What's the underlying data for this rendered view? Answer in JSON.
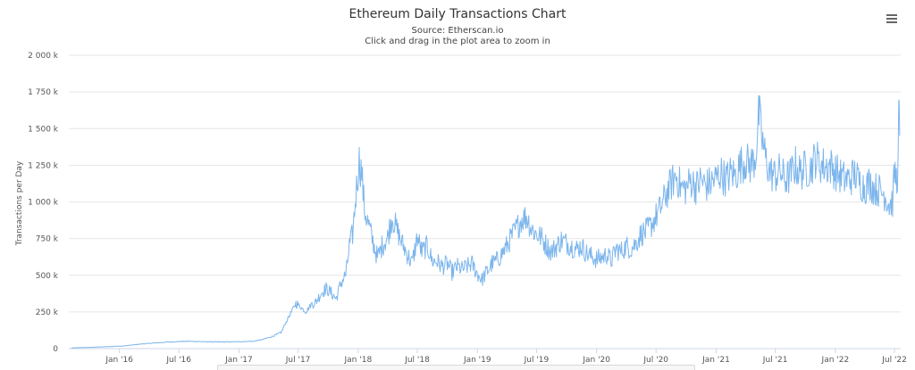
{
  "chart_data": {
    "type": "line",
    "title": "Ethereum Daily Transactions Chart",
    "subtitle": "Source: Etherscan.io",
    "instruction": "Click and drag in the plot area to zoom in",
    "ylabel": "Transactions per Day",
    "xlabel": "",
    "x_ticks": [
      "Jan '16",
      "Jul '16",
      "Jan '17",
      "Jul '17",
      "Jan '18",
      "Jul '18",
      "Jan '19",
      "Jul '19",
      "Jan '20",
      "Jul '20",
      "Jan '21",
      "Jul '21",
      "Jan '22",
      "Jul '22"
    ],
    "y_ticks": [
      "0",
      "250 k",
      "500 k",
      "750 k",
      "1 000 k",
      "1 250 k",
      "1 500 k",
      "1 750 k",
      "2 000 k"
    ],
    "ylim": [
      0,
      2000000
    ],
    "xlim": [
      "2015-07-30",
      "2022-07-20"
    ],
    "grid": true,
    "legend": "none",
    "colors": {
      "line": "#7cb5ec",
      "grid": "#e6e6e6",
      "axis": "#ccd6eb"
    },
    "series": [
      {
        "x": [
          "2015-08-07",
          "2015-10-01",
          "2015-12-01",
          "2016-01-15",
          "2016-03-01",
          "2016-04-15",
          "2016-06-01",
          "2016-07-01",
          "2016-08-01",
          "2016-09-15",
          "2016-11-01",
          "2016-12-15",
          "2017-01-15",
          "2017-02-15",
          "2017-03-15",
          "2017-04-15",
          "2017-05-10",
          "2017-05-25",
          "2017-06-10",
          "2017-06-25",
          "2017-07-10",
          "2017-07-25",
          "2017-08-10",
          "2017-08-25",
          "2017-09-10",
          "2017-09-25",
          "2017-10-10",
          "2017-10-25",
          "2017-11-10",
          "2017-11-25",
          "2017-12-05",
          "2017-12-15",
          "2017-12-25",
          "2018-01-04",
          "2018-01-12",
          "2018-01-20",
          "2018-02-01",
          "2018-02-15",
          "2018-03-01",
          "2018-03-15",
          "2018-04-01",
          "2018-04-15",
          "2018-05-01",
          "2018-05-15",
          "2018-06-01",
          "2018-06-15",
          "2018-07-01",
          "2018-07-15",
          "2018-08-01",
          "2018-08-15",
          "2018-09-01",
          "2018-09-15",
          "2018-10-01",
          "2018-10-15",
          "2018-11-01",
          "2018-11-15",
          "2018-12-01",
          "2018-12-15",
          "2019-01-01",
          "2019-01-15",
          "2019-02-01",
          "2019-02-15",
          "2019-03-01",
          "2019-03-15",
          "2019-04-01",
          "2019-04-15",
          "2019-05-01",
          "2019-05-15",
          "2019-06-01",
          "2019-06-15",
          "2019-07-01",
          "2019-07-15",
          "2019-08-01",
          "2019-08-15",
          "2019-09-01",
          "2019-09-15",
          "2019-10-01",
          "2019-10-15",
          "2019-11-01",
          "2019-11-15",
          "2019-12-01",
          "2019-12-15",
          "2020-01-01",
          "2020-01-15",
          "2020-02-01",
          "2020-02-15",
          "2020-03-01",
          "2020-03-15",
          "2020-04-01",
          "2020-04-15",
          "2020-05-01",
          "2020-05-15",
          "2020-06-01",
          "2020-06-15",
          "2020-07-01",
          "2020-07-15",
          "2020-08-01",
          "2020-08-15",
          "2020-09-01",
          "2020-09-15",
          "2020-10-01",
          "2020-10-15",
          "2020-11-01",
          "2020-11-15",
          "2020-12-01",
          "2020-12-15",
          "2021-01-01",
          "2021-01-15",
          "2021-02-01",
          "2021-02-15",
          "2021-03-01",
          "2021-03-15",
          "2021-04-01",
          "2021-04-15",
          "2021-05-01",
          "2021-05-12",
          "2021-05-20",
          "2021-06-01",
          "2021-06-15",
          "2021-07-01",
          "2021-07-15",
          "2021-08-01",
          "2021-08-15",
          "2021-09-01",
          "2021-09-15",
          "2021-10-01",
          "2021-10-15",
          "2021-11-01",
          "2021-11-15",
          "2021-12-01",
          "2021-12-15",
          "2022-01-01",
          "2022-01-15",
          "2022-02-01",
          "2022-02-15",
          "2022-03-01",
          "2022-03-15",
          "2022-04-01",
          "2022-04-15",
          "2022-05-01",
          "2022-05-15",
          "2022-06-01",
          "2022-06-15",
          "2022-06-25",
          "2022-07-01",
          "2022-07-08",
          "2022-07-12",
          "2022-07-15",
          "2022-07-17"
        ],
        "y": [
          5000,
          8000,
          14000,
          18000,
          30000,
          38000,
          45000,
          48000,
          50000,
          47000,
          45000,
          46000,
          48000,
          50000,
          62000,
          85000,
          110000,
          180000,
          250000,
          310000,
          280000,
          250000,
          300000,
          320000,
          380000,
          410000,
          380000,
          340000,
          450000,
          510000,
          700000,
          780000,
          1050000,
          1280000,
          1200000,
          950000,
          850000,
          730000,
          620000,
          700000,
          760000,
          900000,
          800000,
          720000,
          640000,
          580000,
          760000,
          660000,
          700000,
          600000,
          590000,
          560000,
          580000,
          520000,
          560000,
          540000,
          560000,
          580000,
          510000,
          470000,
          530000,
          580000,
          600000,
          640000,
          700000,
          760000,
          820000,
          880000,
          900000,
          820000,
          780000,
          760000,
          700000,
          660000,
          700000,
          740000,
          720000,
          700000,
          680000,
          700000,
          650000,
          630000,
          610000,
          620000,
          640000,
          600000,
          680000,
          660000,
          700000,
          680000,
          720000,
          780000,
          800000,
          840000,
          900000,
          960000,
          1050000,
          1120000,
          1180000,
          1100000,
          1090000,
          1150000,
          1100000,
          1150000,
          1110000,
          1130000,
          1160000,
          1200000,
          1150000,
          1200000,
          1180000,
          1250000,
          1280000,
          1250000,
          1300000,
          1600000,
          1450000,
          1300000,
          1200000,
          1180000,
          1210000,
          1150000,
          1180000,
          1250000,
          1200000,
          1230000,
          1220000,
          1300000,
          1260000,
          1240000,
          1250000,
          1210000,
          1180000,
          1150000,
          1160000,
          1190000,
          1140000,
          1100000,
          1130000,
          1090000,
          1080000,
          1050000,
          980000,
          1000000,
          1200000,
          1150000,
          1250000,
          1680000,
          1450000
        ]
      }
    ]
  }
}
